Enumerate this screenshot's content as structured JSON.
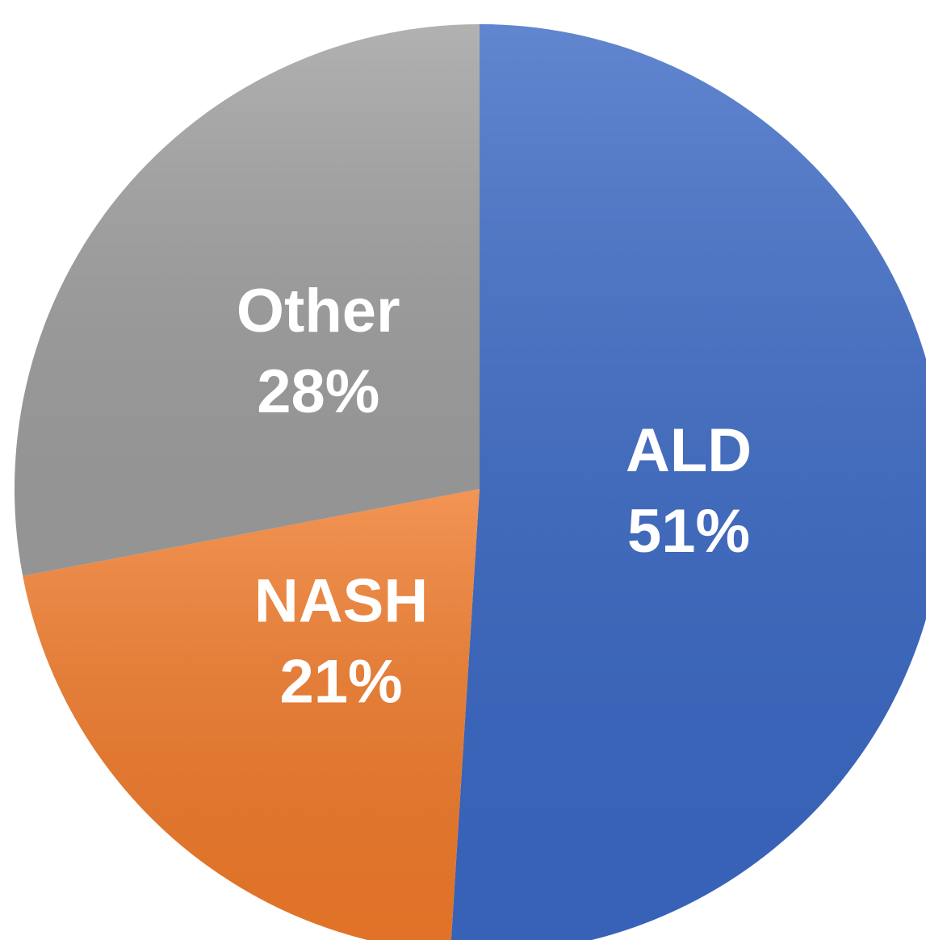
{
  "chart_data": {
    "type": "pie",
    "categories": [
      "ALD",
      "NASH",
      "Other"
    ],
    "values": [
      51,
      21,
      28
    ],
    "value_labels": [
      "51%",
      "21%",
      "28%"
    ],
    "colors": [
      "#3a68c4",
      "#f07a2a",
      "#9e9e9e"
    ]
  }
}
